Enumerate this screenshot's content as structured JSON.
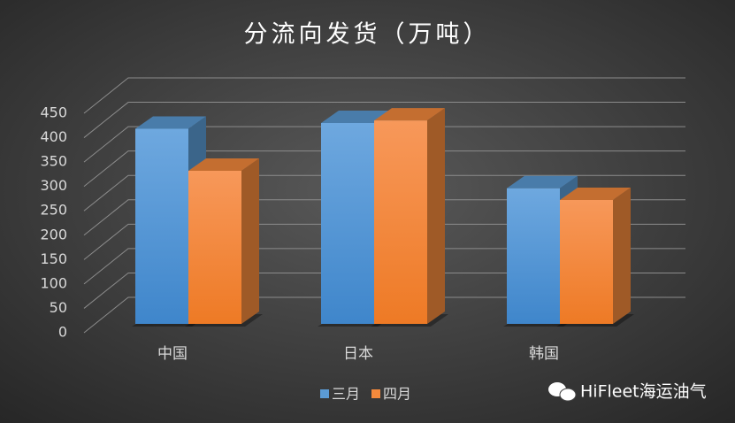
{
  "chart_data": {
    "type": "bar3d",
    "title": "分流向发货（万吨）",
    "categories": [
      "中国",
      "日本",
      "韩国"
    ],
    "series": [
      {
        "name": "三月",
        "color": "#5b9bd5",
        "values": [
          400,
          412,
          278
        ]
      },
      {
        "name": "四月",
        "color": "#f58a3c",
        "values": [
          314,
          417,
          254
        ]
      }
    ],
    "ylim": [
      0,
      450
    ],
    "yticks": [
      0,
      50,
      100,
      150,
      200,
      250,
      300,
      350,
      400,
      450
    ],
    "grid": true,
    "legend": "bottom"
  },
  "watermark": "HiFleet海运油气"
}
